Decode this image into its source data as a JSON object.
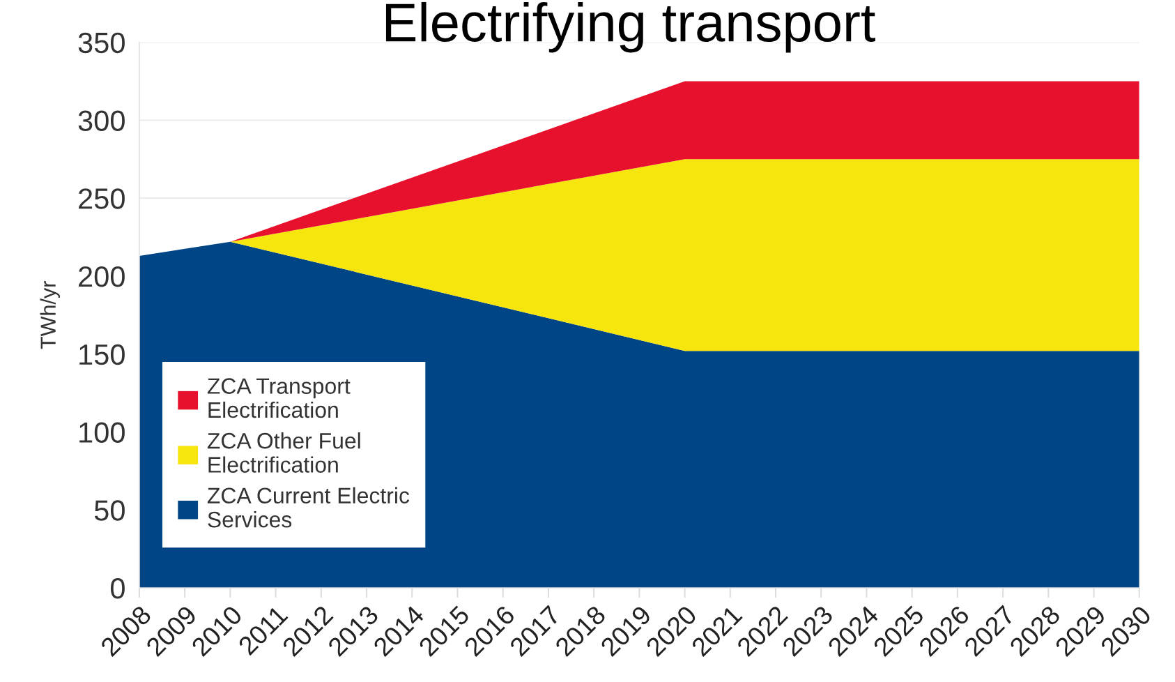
{
  "chart_data": {
    "type": "area",
    "title": "Electrifying transport",
    "ylabel": "TWh/yr",
    "stacked": true,
    "x": [
      2008,
      2010,
      2020,
      2030
    ],
    "series": [
      {
        "name": "ZCA Current Electric\nServices",
        "color": "#004586",
        "values": [
          213,
          222,
          152,
          152
        ]
      },
      {
        "name": "ZCA Other Fuel\nElectrification",
        "color": "#F6E60E",
        "values": [
          0,
          0,
          123,
          123
        ]
      },
      {
        "name": "ZCA Transport\nElectrification",
        "color": "#E8112D",
        "values": [
          0,
          0,
          50,
          50
        ]
      }
    ],
    "xlim": [
      2008,
      2030
    ],
    "xticks": [
      2008,
      2009,
      2010,
      2011,
      2012,
      2013,
      2014,
      2015,
      2016,
      2017,
      2018,
      2019,
      2020,
      2021,
      2022,
      2023,
      2024,
      2025,
      2026,
      2027,
      2028,
      2029,
      2030
    ],
    "ylim": [
      0,
      350
    ],
    "yticks": [
      0,
      50,
      100,
      150,
      200,
      250,
      300,
      350
    ],
    "grid": "y",
    "legend": "bottom left"
  }
}
